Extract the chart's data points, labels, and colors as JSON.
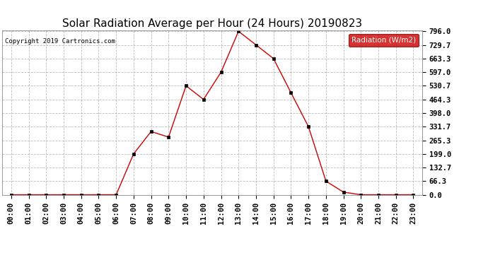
{
  "title": "Solar Radiation Average per Hour (24 Hours) 20190823",
  "copyright_text": "Copyright 2019 Cartronics.com",
  "legend_label": "Radiation (W/m2)",
  "hours": [
    "00:00",
    "01:00",
    "02:00",
    "03:00",
    "04:00",
    "05:00",
    "06:00",
    "07:00",
    "08:00",
    "09:00",
    "10:00",
    "11:00",
    "12:00",
    "13:00",
    "14:00",
    "15:00",
    "16:00",
    "17:00",
    "18:00",
    "19:00",
    "20:00",
    "21:00",
    "22:00",
    "23:00"
  ],
  "values": [
    0.0,
    0.0,
    0.0,
    0.0,
    0.0,
    0.0,
    0.0,
    199.0,
    308.0,
    281.0,
    530.7,
    464.3,
    597.0,
    796.0,
    729.7,
    663.3,
    497.0,
    331.7,
    66.3,
    13.0,
    0.0,
    0.0,
    0.0,
    0.0
  ],
  "line_color": "#cc0000",
  "marker_color": "#000000",
  "bg_color": "#ffffff",
  "grid_color": "#aaaaaa",
  "yticks": [
    0.0,
    66.3,
    132.7,
    199.0,
    265.3,
    331.7,
    398.0,
    464.3,
    530.7,
    597.0,
    663.3,
    729.7,
    796.0
  ],
  "ymax": 796.0,
  "title_fontsize": 11,
  "axis_fontsize": 7.5,
  "legend_bg": "#cc0000",
  "legend_text_color": "#ffffff",
  "copyright_fontsize": 6.5
}
